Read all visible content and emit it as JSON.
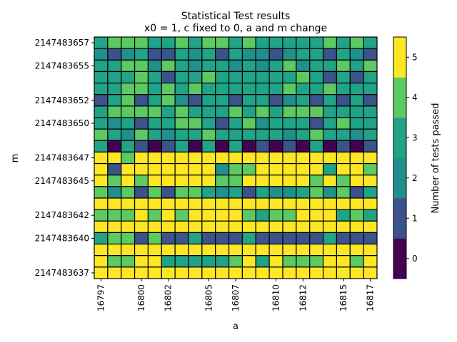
{
  "chart_data": {
    "type": "heatmap",
    "title": "Statistical Test results",
    "subtitle": "x0 = 1, c fixed to 0, a and m change",
    "xlabel": "a",
    "ylabel": "m",
    "colorbar_label": "Number of tests passed",
    "colormap": "viridis",
    "colors": [
      "#440154",
      "#3b528b",
      "#21908d",
      "#20a386",
      "#5dc963",
      "#fde725"
    ],
    "x_values": [
      16797,
      16798,
      16799,
      16800,
      16801,
      16802,
      16803,
      16804,
      16805,
      16806,
      16807,
      16808,
      16809,
      16810,
      16811,
      16812,
      16813,
      16814,
      16815,
      16816,
      16817
    ],
    "x_tick_labels": [
      "16797",
      "16800",
      "16802",
      "16805",
      "16807",
      "16810",
      "16812",
      "16815",
      "16817"
    ],
    "y_values": [
      2147483637,
      2147483638,
      2147483639,
      2147483640,
      2147483641,
      2147483642,
      2147483643,
      2147483644,
      2147483645,
      2147483646,
      2147483647,
      2147483648,
      2147483649,
      2147483650,
      2147483651,
      2147483652,
      2147483653,
      2147483654,
      2147483655,
      2147483656,
      2147483657
    ],
    "y_tick_labels": [
      "2147483637",
      "2147483640",
      "2147483642",
      "2147483645",
      "2147483647",
      "2147483650",
      "2147483652",
      "2147483655",
      "2147483657"
    ],
    "colorbar_ticks": [
      "0",
      "1",
      "2",
      "3",
      "4",
      "5"
    ],
    "vmin": -0.5,
    "vmax": 5.5,
    "values_top_to_bottom": [
      [
        3,
        4,
        4,
        4,
        3,
        3,
        4,
        3,
        4,
        4,
        3,
        4,
        3,
        3,
        3,
        3,
        3,
        4,
        3,
        4,
        3
      ],
      [
        2,
        1,
        2,
        3,
        1,
        1,
        3,
        2,
        3,
        1,
        3,
        2,
        2,
        1,
        2,
        3,
        3,
        1,
        3,
        2,
        1
      ],
      [
        3,
        3,
        4,
        4,
        2,
        4,
        3,
        2,
        3,
        3,
        2,
        3,
        2,
        3,
        4,
        2,
        3,
        3,
        4,
        3,
        4
      ],
      [
        3,
        3,
        3,
        4,
        3,
        1,
        3,
        3,
        4,
        3,
        3,
        3,
        3,
        3,
        3,
        4,
        3,
        1,
        3,
        1,
        3
      ],
      [
        3,
        3,
        4,
        4,
        3,
        4,
        3,
        4,
        3,
        3,
        3,
        3,
        3,
        3,
        4,
        3,
        3,
        4,
        3,
        3,
        3
      ],
      [
        1,
        3,
        4,
        1,
        3,
        4,
        2,
        1,
        3,
        3,
        1,
        3,
        3,
        1,
        2,
        3,
        1,
        3,
        1,
        3,
        1
      ],
      [
        3,
        4,
        4,
        4,
        4,
        3,
        4,
        3,
        3,
        3,
        4,
        3,
        4,
        3,
        4,
        4,
        4,
        3,
        3,
        3,
        3
      ],
      [
        3,
        2,
        3,
        1,
        3,
        3,
        4,
        4,
        3,
        1,
        3,
        4,
        2,
        3,
        3,
        3,
        1,
        3,
        4,
        3,
        3
      ],
      [
        4,
        3,
        2,
        4,
        3,
        2,
        3,
        3,
        4,
        3,
        3,
        3,
        3,
        3,
        2,
        3,
        4,
        3,
        3,
        2,
        3
      ],
      [
        3,
        0,
        3,
        1,
        0,
        1,
        3,
        0,
        3,
        0,
        3,
        0,
        1,
        0,
        1,
        0,
        3,
        0,
        1,
        0,
        1
      ],
      [
        5,
        5,
        4,
        5,
        5,
        5,
        5,
        5,
        5,
        5,
        5,
        5,
        5,
        5,
        5,
        5,
        5,
        5,
        5,
        5,
        5
      ],
      [
        5,
        1,
        5,
        5,
        5,
        5,
        5,
        5,
        5,
        2,
        4,
        4,
        5,
        5,
        5,
        5,
        5,
        3,
        5,
        5,
        4
      ],
      [
        5,
        4,
        5,
        4,
        5,
        5,
        5,
        5,
        5,
        4,
        4,
        5,
        5,
        5,
        5,
        5,
        4,
        5,
        4,
        5,
        5
      ],
      [
        4,
        2,
        4,
        1,
        4,
        1,
        4,
        4,
        3,
        2,
        3,
        1,
        3,
        2,
        2,
        3,
        4,
        2,
        4,
        1,
        3
      ],
      [
        5,
        5,
        5,
        5,
        5,
        5,
        5,
        5,
        5,
        5,
        5,
        5,
        5,
        5,
        5,
        5,
        5,
        5,
        5,
        5,
        5
      ],
      [
        4,
        4,
        4,
        5,
        4,
        5,
        4,
        5,
        5,
        5,
        5,
        4,
        3,
        4,
        4,
        5,
        5,
        5,
        3,
        4,
        3
      ],
      [
        5,
        5,
        5,
        5,
        5,
        5,
        5,
        5,
        5,
        5,
        5,
        5,
        5,
        5,
        5,
        5,
        5,
        5,
        5,
        5,
        5
      ],
      [
        3,
        4,
        4,
        1,
        4,
        1,
        1,
        3,
        1,
        1,
        1,
        3,
        1,
        1,
        1,
        1,
        1,
        3,
        1,
        1,
        1
      ],
      [
        5,
        5,
        5,
        5,
        5,
        5,
        5,
        5,
        5,
        5,
        5,
        5,
        5,
        5,
        5,
        5,
        5,
        5,
        5,
        5,
        5
      ],
      [
        5,
        4,
        4,
        5,
        5,
        3,
        3,
        3,
        3,
        3,
        4,
        5,
        3,
        5,
        4,
        4,
        4,
        5,
        5,
        4,
        5
      ],
      [
        5,
        5,
        5,
        5,
        5,
        5,
        5,
        5,
        5,
        5,
        5,
        5,
        5,
        5,
        5,
        5,
        5,
        5,
        5,
        5,
        5
      ]
    ]
  }
}
